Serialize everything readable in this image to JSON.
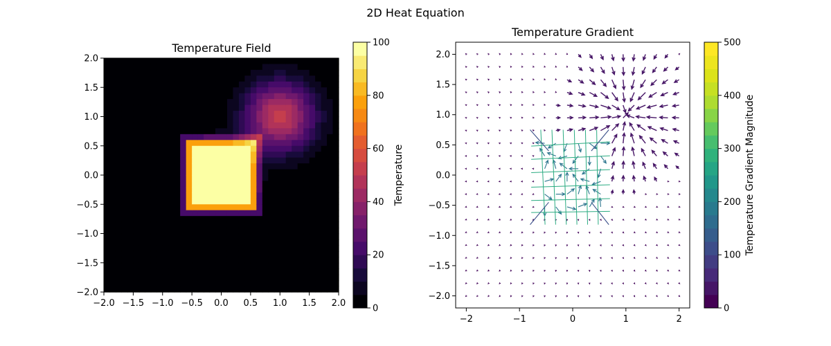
{
  "figure": {
    "suptitle": "2D Heat Equation"
  },
  "chart_data": [
    {
      "type": "heatmap",
      "title": "Temperature Field",
      "xlabel": "",
      "ylabel": "",
      "xlim": [
        -2.0,
        2.0
      ],
      "ylim": [
        -2.0,
        2.0
      ],
      "xticks": [
        "−2.0",
        "−1.5",
        "−1.0",
        "−0.5",
        "0.0",
        "0.5",
        "1.0",
        "1.5",
        "2.0"
      ],
      "yticks": [
        "−2.0",
        "−1.5",
        "−1.0",
        "−0.5",
        "0.0",
        "0.5",
        "1.0",
        "1.5",
        "2.0"
      ],
      "grid": 40,
      "colormap": "inferno",
      "levels": 20,
      "colorbar": {
        "label": "Temperature",
        "range": [
          0,
          100
        ],
        "ticks": [
          "0",
          "20",
          "40",
          "60",
          "80",
          "100"
        ]
      },
      "features": [
        {
          "kind": "square",
          "center": [
            0.0,
            0.0
          ],
          "half_width": 0.6,
          "value": 100
        },
        {
          "kind": "gaussian",
          "center": [
            1.0,
            1.0
          ],
          "peak": 52,
          "sigma": 0.42
        }
      ]
    },
    {
      "type": "quiver",
      "title": "Temperature Gradient",
      "xlabel": "",
      "ylabel": "",
      "xlim": [
        -2.2,
        2.2
      ],
      "ylim": [
        -2.2,
        2.2
      ],
      "xticks": [
        "−2",
        "−1",
        "0",
        "1",
        "2"
      ],
      "yticks": [
        "−2.0",
        "−1.5",
        "−1.0",
        "−0.5",
        "0.0",
        "0.5",
        "1.0",
        "1.5",
        "2.0"
      ],
      "arrow_grid": 20,
      "grid_range": [
        -2.0,
        2.0
      ],
      "colormap": "viridis",
      "colorbar": {
        "label": "Temperature Gradient Magnitude",
        "range": [
          0,
          500
        ],
        "ticks": [
          "0",
          "100",
          "200",
          "300",
          "400",
          "500"
        ]
      }
    }
  ]
}
